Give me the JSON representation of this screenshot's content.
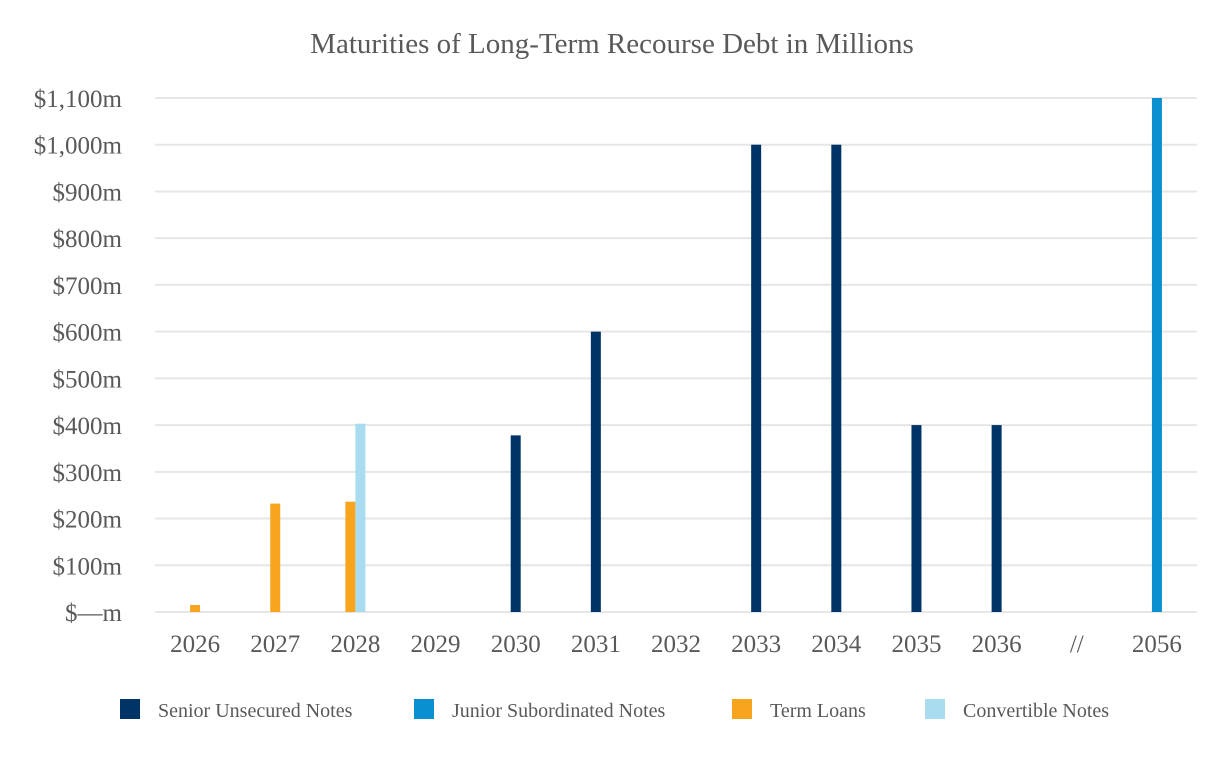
{
  "chart_data": {
    "type": "bar",
    "title": "Maturities of Long-Term Recourse Debt in Millions",
    "xlabel": "",
    "ylabel": "",
    "categories": [
      "2026",
      "2027",
      "2028",
      "2029",
      "2030",
      "2031",
      "2032",
      "2033",
      "2034",
      "2035",
      "2036",
      "//",
      "2056"
    ],
    "ylim": [
      0,
      1100
    ],
    "yticks": [
      0,
      100,
      200,
      300,
      400,
      500,
      600,
      700,
      800,
      900,
      1000,
      1100
    ],
    "ytick_labels": [
      "$—m",
      "$100m",
      "$200m",
      "$300m",
      "$400m",
      "$500m",
      "$600m",
      "$700m",
      "$800m",
      "$900m",
      "$1,000m",
      "$1,100m"
    ],
    "grid": true,
    "legend_position": "bottom",
    "series": [
      {
        "name": "Senior Unsecured Notes",
        "color": "#003366",
        "values": [
          0,
          0,
          0,
          0,
          378,
          600,
          0,
          1000,
          1000,
          400,
          400,
          0,
          0
        ]
      },
      {
        "name": "Junior Subordinated Notes",
        "color": "#0a8fd1",
        "values": [
          0,
          0,
          0,
          0,
          0,
          0,
          0,
          0,
          0,
          0,
          0,
          0,
          1100
        ]
      },
      {
        "name": "Term Loans",
        "color": "#f7a51f",
        "values": [
          15,
          232,
          236,
          0,
          0,
          0,
          0,
          0,
          0,
          0,
          0,
          0,
          0
        ]
      },
      {
        "name": "Convertible Notes",
        "color": "#a8dcee",
        "values": [
          0,
          0,
          403,
          0,
          0,
          0,
          0,
          0,
          0,
          0,
          0,
          0,
          0
        ]
      }
    ]
  }
}
